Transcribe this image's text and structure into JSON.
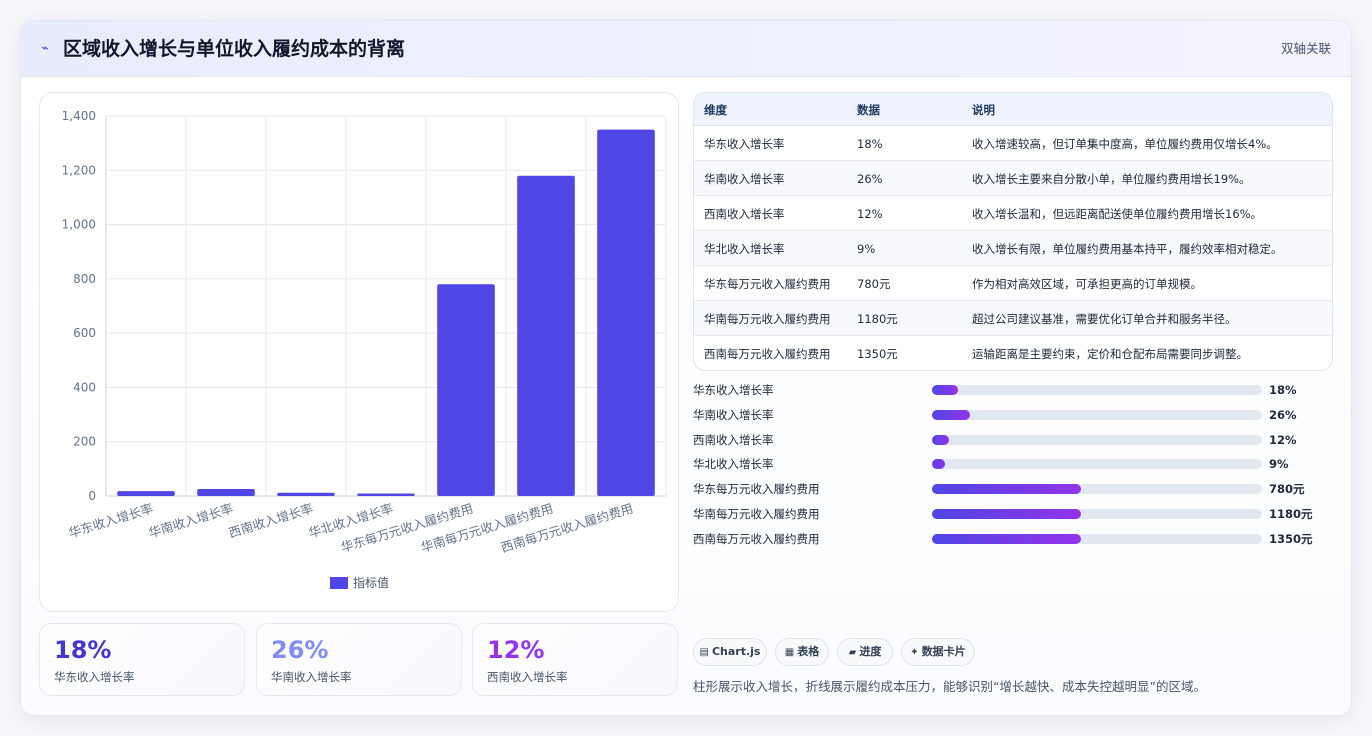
{
  "header": {
    "icon": "trend-icon",
    "title": "区域收入增长与单位收入履约成本的背离",
    "badge": "双轴关联"
  },
  "chart_data": {
    "type": "bar",
    "categories": [
      "华东收入增长率",
      "华南收入增长率",
      "西南收入增长率",
      "华北收入增长率",
      "华东每万元收入履约费用",
      "华南每万元收入履约费用",
      "西南每万元收入履约费用"
    ],
    "series": [
      {
        "name": "指标值",
        "values": [
          18,
          26,
          12,
          9,
          780,
          1180,
          1350
        ]
      }
    ],
    "ylim": [
      0,
      1400
    ],
    "yticks": [
      "0",
      "200",
      "400",
      "600",
      "800",
      "1,000",
      "1,200",
      "1,400"
    ],
    "grid": true,
    "legend": "bottom",
    "color": "#4f46e5"
  },
  "stats": [
    {
      "value": "18%",
      "label": "华东收入增长率",
      "color": "#4338ca"
    },
    {
      "value": "26%",
      "label": "华南收入增长率",
      "color": "#818cf8"
    },
    {
      "value": "12%",
      "label": "西南收入增长率",
      "color": "#9333ea"
    }
  ],
  "table": {
    "headers": [
      "维度",
      "数据",
      "说明"
    ],
    "rows": [
      {
        "dim": "华东收入增长率",
        "value": "18%",
        "note": "收入增速较高，但订单集中度高，单位履约费用仅增长4%。"
      },
      {
        "dim": "华南收入增长率",
        "value": "26%",
        "note": "收入增长主要来自分散小单，单位履约费用增长19%。"
      },
      {
        "dim": "西南收入增长率",
        "value": "12%",
        "note": "收入增长温和，但远距离配送使单位履约费用增长16%。"
      },
      {
        "dim": "华北收入增长率",
        "value": "9%",
        "note": "收入增长有限，单位履约费用基本持平，履约效率相对稳定。"
      },
      {
        "dim": "华东每万元收入履约费用",
        "value": "780元",
        "note": "作为相对高效区域，可承担更高的订单规模。"
      },
      {
        "dim": "华南每万元收入履约费用",
        "value": "1180元",
        "note": "超过公司建议基准，需要优化订单合并和服务半径。"
      },
      {
        "dim": "西南每万元收入履约费用",
        "value": "1350元",
        "note": "运输距离是主要约束，定价和仓配布局需要同步调整。"
      }
    ]
  },
  "progress": [
    {
      "label": "华东收入增长率",
      "value": "18%",
      "level": 0.08
    },
    {
      "label": "华南收入增长率",
      "value": "26%",
      "level": 0.115
    },
    {
      "label": "西南收入增长率",
      "value": "12%",
      "level": 0.05
    },
    {
      "label": "华北收入增长率",
      "value": "9%",
      "level": 0.04
    },
    {
      "label": "华东每万元收入履约费用",
      "value": "780元",
      "level": 0.45
    },
    {
      "label": "华南每万元收入履约费用",
      "value": "1180元",
      "level": 0.45
    },
    {
      "label": "西南每万元收入履约费用",
      "value": "1350元",
      "level": 0.45
    }
  ],
  "chips": [
    {
      "icon": "chart-icon",
      "glyph": "▤",
      "label": "Chart.js"
    },
    {
      "icon": "table-icon",
      "glyph": "▦",
      "label": "表格"
    },
    {
      "icon": "progress-icon",
      "glyph": "▰",
      "label": "进度"
    },
    {
      "icon": "sparkle-icon",
      "glyph": "✦",
      "label": "数据卡片"
    }
  ],
  "footnote": "柱形展示收入增长，折线展示履约成本压力，能够识别“增长越快、成本失控越明显”的区域。"
}
